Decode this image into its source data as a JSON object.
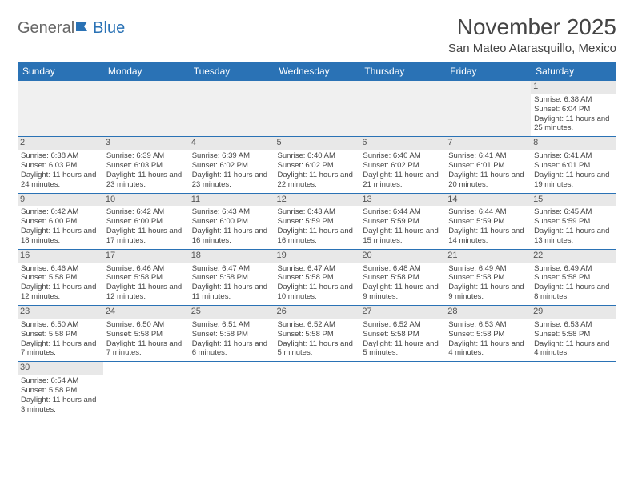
{
  "logo": {
    "general": "General",
    "blue": "Blue"
  },
  "title": "November 2025",
  "location": "San Mateo Atarasquillo, Mexico",
  "day_headers": [
    "Sunday",
    "Monday",
    "Tuesday",
    "Wednesday",
    "Thursday",
    "Friday",
    "Saturday"
  ],
  "colors": {
    "header_bg": "#2a72b5",
    "header_text": "#ffffff",
    "daynum_bg": "#e8e8e8",
    "blank_bg": "#f0f0f0",
    "border": "#2a72b5"
  },
  "weeks": [
    [
      null,
      null,
      null,
      null,
      null,
      null,
      {
        "n": "1",
        "sr": "Sunrise: 6:38 AM",
        "ss": "Sunset: 6:04 PM",
        "dl": "Daylight: 11 hours and 25 minutes."
      }
    ],
    [
      {
        "n": "2",
        "sr": "Sunrise: 6:38 AM",
        "ss": "Sunset: 6:03 PM",
        "dl": "Daylight: 11 hours and 24 minutes."
      },
      {
        "n": "3",
        "sr": "Sunrise: 6:39 AM",
        "ss": "Sunset: 6:03 PM",
        "dl": "Daylight: 11 hours and 23 minutes."
      },
      {
        "n": "4",
        "sr": "Sunrise: 6:39 AM",
        "ss": "Sunset: 6:02 PM",
        "dl": "Daylight: 11 hours and 23 minutes."
      },
      {
        "n": "5",
        "sr": "Sunrise: 6:40 AM",
        "ss": "Sunset: 6:02 PM",
        "dl": "Daylight: 11 hours and 22 minutes."
      },
      {
        "n": "6",
        "sr": "Sunrise: 6:40 AM",
        "ss": "Sunset: 6:02 PM",
        "dl": "Daylight: 11 hours and 21 minutes."
      },
      {
        "n": "7",
        "sr": "Sunrise: 6:41 AM",
        "ss": "Sunset: 6:01 PM",
        "dl": "Daylight: 11 hours and 20 minutes."
      },
      {
        "n": "8",
        "sr": "Sunrise: 6:41 AM",
        "ss": "Sunset: 6:01 PM",
        "dl": "Daylight: 11 hours and 19 minutes."
      }
    ],
    [
      {
        "n": "9",
        "sr": "Sunrise: 6:42 AM",
        "ss": "Sunset: 6:00 PM",
        "dl": "Daylight: 11 hours and 18 minutes."
      },
      {
        "n": "10",
        "sr": "Sunrise: 6:42 AM",
        "ss": "Sunset: 6:00 PM",
        "dl": "Daylight: 11 hours and 17 minutes."
      },
      {
        "n": "11",
        "sr": "Sunrise: 6:43 AM",
        "ss": "Sunset: 6:00 PM",
        "dl": "Daylight: 11 hours and 16 minutes."
      },
      {
        "n": "12",
        "sr": "Sunrise: 6:43 AM",
        "ss": "Sunset: 5:59 PM",
        "dl": "Daylight: 11 hours and 16 minutes."
      },
      {
        "n": "13",
        "sr": "Sunrise: 6:44 AM",
        "ss": "Sunset: 5:59 PM",
        "dl": "Daylight: 11 hours and 15 minutes."
      },
      {
        "n": "14",
        "sr": "Sunrise: 6:44 AM",
        "ss": "Sunset: 5:59 PM",
        "dl": "Daylight: 11 hours and 14 minutes."
      },
      {
        "n": "15",
        "sr": "Sunrise: 6:45 AM",
        "ss": "Sunset: 5:59 PM",
        "dl": "Daylight: 11 hours and 13 minutes."
      }
    ],
    [
      {
        "n": "16",
        "sr": "Sunrise: 6:46 AM",
        "ss": "Sunset: 5:58 PM",
        "dl": "Daylight: 11 hours and 12 minutes."
      },
      {
        "n": "17",
        "sr": "Sunrise: 6:46 AM",
        "ss": "Sunset: 5:58 PM",
        "dl": "Daylight: 11 hours and 12 minutes."
      },
      {
        "n": "18",
        "sr": "Sunrise: 6:47 AM",
        "ss": "Sunset: 5:58 PM",
        "dl": "Daylight: 11 hours and 11 minutes."
      },
      {
        "n": "19",
        "sr": "Sunrise: 6:47 AM",
        "ss": "Sunset: 5:58 PM",
        "dl": "Daylight: 11 hours and 10 minutes."
      },
      {
        "n": "20",
        "sr": "Sunrise: 6:48 AM",
        "ss": "Sunset: 5:58 PM",
        "dl": "Daylight: 11 hours and 9 minutes."
      },
      {
        "n": "21",
        "sr": "Sunrise: 6:49 AM",
        "ss": "Sunset: 5:58 PM",
        "dl": "Daylight: 11 hours and 9 minutes."
      },
      {
        "n": "22",
        "sr": "Sunrise: 6:49 AM",
        "ss": "Sunset: 5:58 PM",
        "dl": "Daylight: 11 hours and 8 minutes."
      }
    ],
    [
      {
        "n": "23",
        "sr": "Sunrise: 6:50 AM",
        "ss": "Sunset: 5:58 PM",
        "dl": "Daylight: 11 hours and 7 minutes."
      },
      {
        "n": "24",
        "sr": "Sunrise: 6:50 AM",
        "ss": "Sunset: 5:58 PM",
        "dl": "Daylight: 11 hours and 7 minutes."
      },
      {
        "n": "25",
        "sr": "Sunrise: 6:51 AM",
        "ss": "Sunset: 5:58 PM",
        "dl": "Daylight: 11 hours and 6 minutes."
      },
      {
        "n": "26",
        "sr": "Sunrise: 6:52 AM",
        "ss": "Sunset: 5:58 PM",
        "dl": "Daylight: 11 hours and 5 minutes."
      },
      {
        "n": "27",
        "sr": "Sunrise: 6:52 AM",
        "ss": "Sunset: 5:58 PM",
        "dl": "Daylight: 11 hours and 5 minutes."
      },
      {
        "n": "28",
        "sr": "Sunrise: 6:53 AM",
        "ss": "Sunset: 5:58 PM",
        "dl": "Daylight: 11 hours and 4 minutes."
      },
      {
        "n": "29",
        "sr": "Sunrise: 6:53 AM",
        "ss": "Sunset: 5:58 PM",
        "dl": "Daylight: 11 hours and 4 minutes."
      }
    ],
    [
      {
        "n": "30",
        "sr": "Sunrise: 6:54 AM",
        "ss": "Sunset: 5:58 PM",
        "dl": "Daylight: 11 hours and 3 minutes."
      },
      null,
      null,
      null,
      null,
      null,
      null
    ]
  ]
}
